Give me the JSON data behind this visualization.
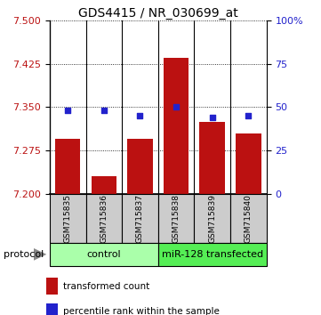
{
  "title": "GDS4415 / NR_030699_at",
  "samples": [
    "GSM715835",
    "GSM715836",
    "GSM715837",
    "GSM715838",
    "GSM715839",
    "GSM715840"
  ],
  "red_values": [
    7.295,
    7.23,
    7.295,
    7.435,
    7.325,
    7.305
  ],
  "blue_values_pct": [
    48,
    48,
    45,
    50,
    44,
    45
  ],
  "y_min": 7.2,
  "y_max": 7.5,
  "y_ticks": [
    7.2,
    7.275,
    7.35,
    7.425,
    7.5
  ],
  "y2_ticks": [
    0,
    25,
    50,
    75,
    100
  ],
  "control_label": "control",
  "transfected_label": "miR-128 transfected",
  "protocol_label": "protocol",
  "legend_red": "transformed count",
  "legend_blue": "percentile rank within the sample",
  "bar_color": "#bb1111",
  "blue_color": "#2222cc",
  "bar_baseline": 7.2,
  "control_bg": "#aaffaa",
  "transfected_bg": "#55ee55",
  "sample_bg": "#cccccc",
  "bar_width": 0.7,
  "title_fontsize": 10,
  "tick_fontsize": 8,
  "label_fontsize": 8
}
